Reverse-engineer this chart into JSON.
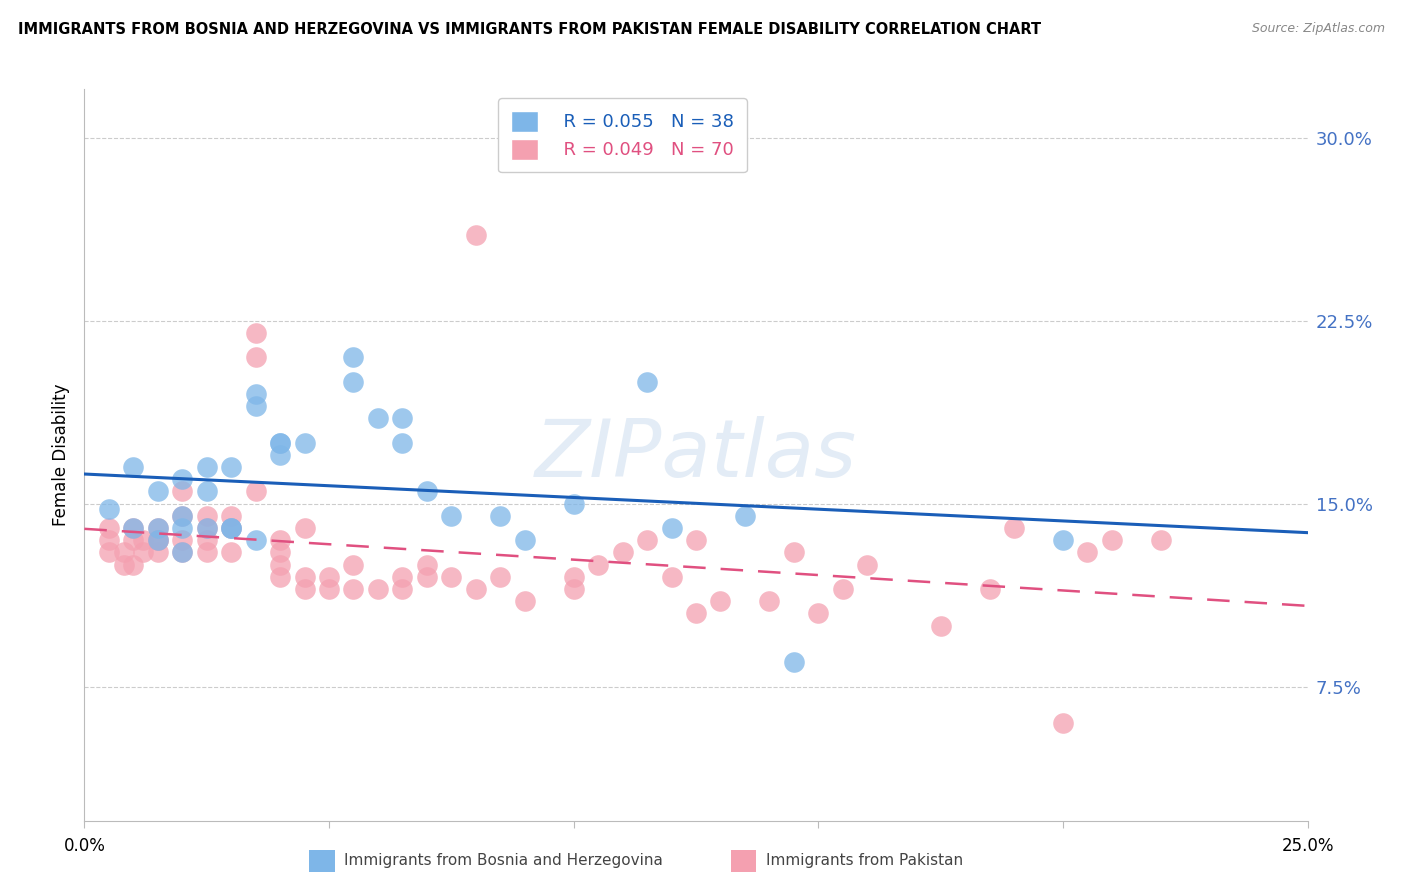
{
  "title": "IMMIGRANTS FROM BOSNIA AND HERZEGOVINA VS IMMIGRANTS FROM PAKISTAN FEMALE DISABILITY CORRELATION CHART",
  "source": "Source: ZipAtlas.com",
  "ylabel": "Female Disability",
  "ytick_labels": [
    "30.0%",
    "22.5%",
    "15.0%",
    "7.5%"
  ],
  "ytick_values": [
    0.3,
    0.225,
    0.15,
    0.075
  ],
  "xlim": [
    0.0,
    0.25
  ],
  "ylim": [
    0.02,
    0.32
  ],
  "series1_label": "Immigrants from Bosnia and Herzegovina",
  "series2_label": "Immigrants from Pakistan",
  "series1_color": "#7eb6e8",
  "series2_color": "#f4a0b0",
  "series1_line_color": "#1a5eb8",
  "series2_line_color": "#e05080",
  "R1": 0.055,
  "N1": 38,
  "R2": 0.049,
  "N2": 70,
  "watermark": "ZIPatlas",
  "series1_x": [
    0.005,
    0.01,
    0.01,
    0.015,
    0.015,
    0.015,
    0.02,
    0.02,
    0.02,
    0.02,
    0.025,
    0.025,
    0.025,
    0.03,
    0.03,
    0.03,
    0.035,
    0.035,
    0.035,
    0.04,
    0.04,
    0.04,
    0.045,
    0.055,
    0.055,
    0.06,
    0.065,
    0.065,
    0.07,
    0.075,
    0.085,
    0.09,
    0.1,
    0.115,
    0.12,
    0.135,
    0.145,
    0.2
  ],
  "series1_y": [
    0.148,
    0.165,
    0.14,
    0.14,
    0.155,
    0.135,
    0.14,
    0.145,
    0.13,
    0.16,
    0.14,
    0.165,
    0.155,
    0.14,
    0.14,
    0.165,
    0.135,
    0.19,
    0.195,
    0.17,
    0.175,
    0.175,
    0.175,
    0.21,
    0.2,
    0.185,
    0.175,
    0.185,
    0.155,
    0.145,
    0.145,
    0.135,
    0.15,
    0.2,
    0.14,
    0.145,
    0.085,
    0.135
  ],
  "series2_x": [
    0.005,
    0.005,
    0.005,
    0.008,
    0.008,
    0.01,
    0.01,
    0.01,
    0.012,
    0.012,
    0.015,
    0.015,
    0.015,
    0.015,
    0.02,
    0.02,
    0.02,
    0.02,
    0.025,
    0.025,
    0.025,
    0.025,
    0.03,
    0.03,
    0.03,
    0.035,
    0.035,
    0.035,
    0.04,
    0.04,
    0.04,
    0.04,
    0.045,
    0.045,
    0.045,
    0.05,
    0.05,
    0.055,
    0.055,
    0.06,
    0.065,
    0.065,
    0.07,
    0.07,
    0.075,
    0.08,
    0.08,
    0.085,
    0.09,
    0.1,
    0.1,
    0.105,
    0.11,
    0.115,
    0.12,
    0.125,
    0.125,
    0.13,
    0.14,
    0.145,
    0.15,
    0.155,
    0.16,
    0.175,
    0.185,
    0.19,
    0.2,
    0.205,
    0.21,
    0.22
  ],
  "series2_y": [
    0.14,
    0.135,
    0.13,
    0.13,
    0.125,
    0.14,
    0.135,
    0.125,
    0.135,
    0.13,
    0.14,
    0.13,
    0.135,
    0.135,
    0.13,
    0.145,
    0.155,
    0.135,
    0.145,
    0.14,
    0.135,
    0.13,
    0.145,
    0.13,
    0.14,
    0.22,
    0.21,
    0.155,
    0.135,
    0.12,
    0.13,
    0.125,
    0.14,
    0.12,
    0.115,
    0.115,
    0.12,
    0.115,
    0.125,
    0.115,
    0.115,
    0.12,
    0.125,
    0.12,
    0.12,
    0.26,
    0.115,
    0.12,
    0.11,
    0.12,
    0.115,
    0.125,
    0.13,
    0.135,
    0.12,
    0.135,
    0.105,
    0.11,
    0.11,
    0.13,
    0.105,
    0.115,
    0.125,
    0.1,
    0.115,
    0.14,
    0.06,
    0.13,
    0.135,
    0.135
  ]
}
